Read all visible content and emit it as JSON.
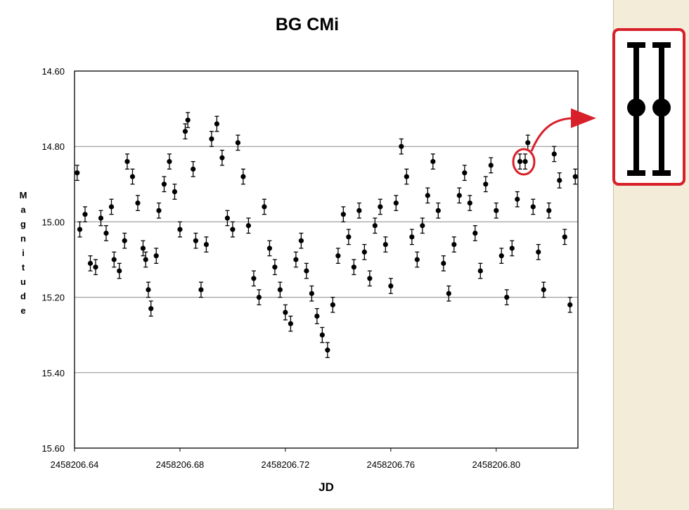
{
  "chart_data": {
    "type": "scatter",
    "title": "BG CMi",
    "xlabel": "JD",
    "ylabel": "Magnitude",
    "xlim": [
      2458206.64,
      2458206.831
    ],
    "ylim": [
      14.6,
      15.6
    ],
    "y_inverted": true,
    "x_ticks": [
      "2458206.64",
      "2458206.68",
      "2458206.72",
      "2458206.76",
      "2458206.80"
    ],
    "y_ticks": [
      "14.60",
      "14.80",
      "15.00",
      "15.20",
      "15.40",
      "15.60"
    ],
    "grid": "horizontal",
    "legend": "none",
    "error_bars": true,
    "marker_color": "#000000",
    "series": [
      {
        "points": [
          [
            2458206.641,
            14.87
          ],
          [
            2458206.642,
            15.02
          ],
          [
            2458206.644,
            14.98
          ],
          [
            2458206.646,
            15.11
          ],
          [
            2458206.648,
            15.12
          ],
          [
            2458206.65,
            14.99
          ],
          [
            2458206.652,
            15.03
          ],
          [
            2458206.654,
            14.96
          ],
          [
            2458206.655,
            15.1
          ],
          [
            2458206.657,
            15.13
          ],
          [
            2458206.659,
            15.05
          ],
          [
            2458206.66,
            14.84
          ],
          [
            2458206.662,
            14.88
          ],
          [
            2458206.664,
            14.95
          ],
          [
            2458206.666,
            15.07
          ],
          [
            2458206.667,
            15.1
          ],
          [
            2458206.668,
            15.18
          ],
          [
            2458206.669,
            15.23
          ],
          [
            2458206.671,
            15.09
          ],
          [
            2458206.672,
            14.97
          ],
          [
            2458206.674,
            14.9
          ],
          [
            2458206.676,
            14.84
          ],
          [
            2458206.678,
            14.92
          ],
          [
            2458206.68,
            15.02
          ],
          [
            2458206.682,
            14.76
          ],
          [
            2458206.683,
            14.73
          ],
          [
            2458206.685,
            14.86
          ],
          [
            2458206.686,
            15.05
          ],
          [
            2458206.688,
            15.18
          ],
          [
            2458206.69,
            15.06
          ],
          [
            2458206.692,
            14.78
          ],
          [
            2458206.694,
            14.74
          ],
          [
            2458206.696,
            14.83
          ],
          [
            2458206.698,
            14.99
          ],
          [
            2458206.7,
            15.02
          ],
          [
            2458206.702,
            14.79
          ],
          [
            2458206.704,
            14.88
          ],
          [
            2458206.706,
            15.01
          ],
          [
            2458206.708,
            15.15
          ],
          [
            2458206.71,
            15.2
          ],
          [
            2458206.712,
            14.96
          ],
          [
            2458206.714,
            15.07
          ],
          [
            2458206.716,
            15.12
          ],
          [
            2458206.718,
            15.18
          ],
          [
            2458206.72,
            15.24
          ],
          [
            2458206.722,
            15.27
          ],
          [
            2458206.724,
            15.1
          ],
          [
            2458206.726,
            15.05
          ],
          [
            2458206.728,
            15.13
          ],
          [
            2458206.73,
            15.19
          ],
          [
            2458206.732,
            15.25
          ],
          [
            2458206.734,
            15.3
          ],
          [
            2458206.736,
            15.34
          ],
          [
            2458206.738,
            15.22
          ],
          [
            2458206.74,
            15.09
          ],
          [
            2458206.742,
            14.98
          ],
          [
            2458206.744,
            15.04
          ],
          [
            2458206.746,
            15.12
          ],
          [
            2458206.748,
            14.97
          ],
          [
            2458206.75,
            15.08
          ],
          [
            2458206.752,
            15.15
          ],
          [
            2458206.754,
            15.01
          ],
          [
            2458206.756,
            14.96
          ],
          [
            2458206.758,
            15.06
          ],
          [
            2458206.76,
            15.17
          ],
          [
            2458206.762,
            14.95
          ],
          [
            2458206.764,
            14.8
          ],
          [
            2458206.766,
            14.88
          ],
          [
            2458206.768,
            15.04
          ],
          [
            2458206.77,
            15.1
          ],
          [
            2458206.772,
            15.01
          ],
          [
            2458206.774,
            14.93
          ],
          [
            2458206.776,
            14.84
          ],
          [
            2458206.778,
            14.97
          ],
          [
            2458206.78,
            15.11
          ],
          [
            2458206.782,
            15.19
          ],
          [
            2458206.784,
            15.06
          ],
          [
            2458206.786,
            14.93
          ],
          [
            2458206.788,
            14.87
          ],
          [
            2458206.79,
            14.95
          ],
          [
            2458206.792,
            15.03
          ],
          [
            2458206.794,
            15.13
          ],
          [
            2458206.796,
            14.9
          ],
          [
            2458206.798,
            14.85
          ],
          [
            2458206.8,
            14.97
          ],
          [
            2458206.802,
            15.09
          ],
          [
            2458206.804,
            15.2
          ],
          [
            2458206.806,
            15.07
          ],
          [
            2458206.808,
            14.94
          ],
          [
            2458206.809,
            14.84
          ],
          [
            2458206.811,
            14.84
          ],
          [
            2458206.812,
            14.79
          ],
          [
            2458206.814,
            14.96
          ],
          [
            2458206.816,
            15.08
          ],
          [
            2458206.818,
            15.18
          ],
          [
            2458206.82,
            14.97
          ],
          [
            2458206.822,
            14.82
          ],
          [
            2458206.824,
            14.89
          ],
          [
            2458206.826,
            15.04
          ],
          [
            2458206.828,
            15.22
          ],
          [
            2458206.83,
            14.88
          ]
        ],
        "error": 0.02
      }
    ],
    "highlight": {
      "points": [
        [
          2458206.8087,
          14.84
        ],
        [
          2458206.8108,
          14.84
        ]
      ],
      "color": "#d8202a"
    }
  }
}
